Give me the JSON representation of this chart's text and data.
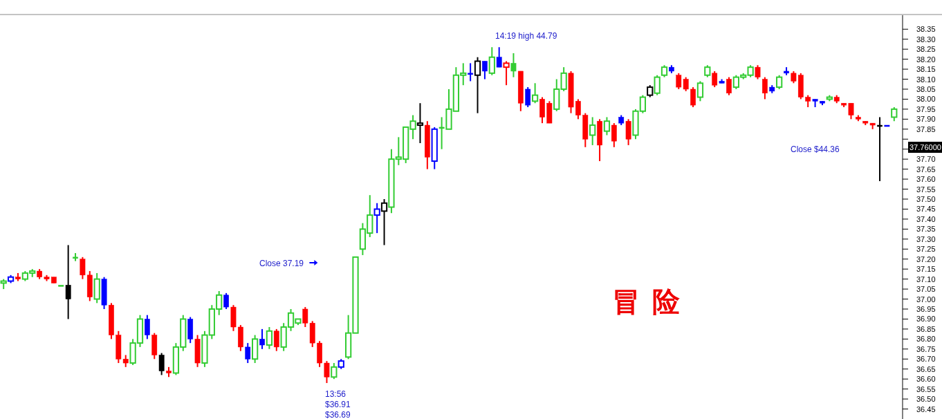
{
  "chart_data": {
    "type": "candlestick",
    "categories": [
      null,
      null,
      null,
      null,
      null,
      null,
      null,
      null,
      null,
      null,
      null,
      null,
      null,
      null,
      null,
      null,
      null,
      null,
      null,
      null,
      null,
      null,
      null,
      null,
      null,
      null,
      null,
      null,
      null,
      null,
      null,
      null,
      null,
      null,
      null,
      null,
      null,
      null,
      null,
      null,
      null,
      null,
      null,
      null,
      null,
      null,
      null,
      null,
      null,
      null,
      null,
      null,
      null,
      null,
      null,
      null,
      null,
      null,
      null,
      null,
      null,
      null,
      null,
      null,
      null,
      null,
      null,
      null,
      null,
      null,
      null,
      null,
      null,
      null,
      null,
      null,
      null,
      null,
      null,
      null,
      null,
      null,
      null,
      null,
      null,
      null,
      null,
      null,
      null,
      null,
      null,
      null,
      null,
      null,
      null,
      null,
      null,
      null,
      null,
      null,
      null,
      null,
      null,
      null,
      null,
      null,
      null,
      null,
      null,
      null,
      null,
      null,
      null,
      null,
      null,
      null,
      null,
      null,
      null,
      null,
      null,
      null,
      null,
      null,
      null
    ],
    "ohlc": [
      [
        37.08,
        37.1,
        37.05,
        37.09
      ],
      [
        37.09,
        37.12,
        37.08,
        37.11
      ],
      [
        37.11,
        37.13,
        37.09,
        37.1
      ],
      [
        37.1,
        37.14,
        37.09,
        37.13
      ],
      [
        37.13,
        37.15,
        37.11,
        37.14
      ],
      [
        37.14,
        37.15,
        37.1,
        37.11
      ],
      [
        37.11,
        37.12,
        37.09,
        37.1
      ],
      [
        37.11,
        37.11,
        37.08,
        37.08
      ],
      [
        37.07,
        37.07,
        37.07,
        37.07
      ],
      [
        37.07,
        37.27,
        36.9,
        37.0
      ],
      [
        37.21,
        37.23,
        37.19,
        37.21
      ],
      [
        37.2,
        37.21,
        37.1,
        37.12
      ],
      [
        37.12,
        37.14,
        36.99,
        37.01
      ],
      [
        37.0,
        37.13,
        36.98,
        37.1
      ],
      [
        37.1,
        37.11,
        36.95,
        36.97
      ],
      [
        36.97,
        36.98,
        36.8,
        36.82
      ],
      [
        36.82,
        36.84,
        36.68,
        36.7
      ],
      [
        36.7,
        36.72,
        36.66,
        36.68
      ],
      [
        36.68,
        36.8,
        36.67,
        36.78
      ],
      [
        36.78,
        36.92,
        36.76,
        36.9
      ],
      [
        36.9,
        36.92,
        36.8,
        36.82
      ],
      [
        36.82,
        36.83,
        36.7,
        36.72
      ],
      [
        36.72,
        36.73,
        36.62,
        36.64
      ],
      [
        36.64,
        36.66,
        36.61,
        36.63
      ],
      [
        36.63,
        36.78,
        36.62,
        36.76
      ],
      [
        36.76,
        36.92,
        36.74,
        36.9
      ],
      [
        36.9,
        36.91,
        36.78,
        36.8
      ],
      [
        36.8,
        36.82,
        36.66,
        36.68
      ],
      [
        36.68,
        36.84,
        36.66,
        36.82
      ],
      [
        36.82,
        36.97,
        36.8,
        36.95
      ],
      [
        36.95,
        37.04,
        36.92,
        37.02
      ],
      [
        37.02,
        37.03,
        36.95,
        36.96
      ],
      [
        36.96,
        36.97,
        36.84,
        36.86
      ],
      [
        36.86,
        36.87,
        36.74,
        36.76
      ],
      [
        36.76,
        36.78,
        36.68,
        36.7
      ],
      [
        36.7,
        36.82,
        36.68,
        36.8
      ],
      [
        36.8,
        36.85,
        36.75,
        36.77
      ],
      [
        36.77,
        36.86,
        36.75,
        36.84
      ],
      [
        36.84,
        36.85,
        36.74,
        36.76
      ],
      [
        36.76,
        36.88,
        36.74,
        36.86
      ],
      [
        36.86,
        36.95,
        36.84,
        36.93
      ],
      [
        36.88,
        36.9,
        36.87,
        36.9
      ],
      [
        36.95,
        36.96,
        36.86,
        36.88
      ],
      [
        36.88,
        36.89,
        36.76,
        36.78
      ],
      [
        36.78,
        36.79,
        36.66,
        36.68
      ],
      [
        36.68,
        36.69,
        36.58,
        36.61
      ],
      [
        36.61,
        36.68,
        36.6,
        36.66
      ],
      [
        36.66,
        36.7,
        36.65,
        36.69
      ],
      [
        36.71,
        36.92,
        36.7,
        36.83
      ],
      [
        36.83,
        37.21,
        36.83,
        37.21
      ],
      [
        37.25,
        37.38,
        37.22,
        37.35
      ],
      [
        37.33,
        37.52,
        37.31,
        37.42
      ],
      [
        37.42,
        37.48,
        37.33,
        37.45
      ],
      [
        37.44,
        37.5,
        37.27,
        37.48
      ],
      [
        37.46,
        37.75,
        37.43,
        37.7
      ],
      [
        37.7,
        37.81,
        37.67,
        37.71
      ],
      [
        37.7,
        37.86,
        37.68,
        37.86
      ],
      [
        37.85,
        37.92,
        37.8,
        37.89
      ],
      [
        37.87,
        37.98,
        37.78,
        37.88
      ],
      [
        37.87,
        37.89,
        37.65,
        37.71
      ],
      [
        37.69,
        37.86,
        37.65,
        37.85
      ],
      [
        37.86,
        37.91,
        37.75,
        37.86
      ],
      [
        37.85,
        38.05,
        37.85,
        37.95
      ],
      [
        37.94,
        38.16,
        37.94,
        38.12
      ],
      [
        38.12,
        38.18,
        38.07,
        38.13
      ],
      [
        38.13,
        38.18,
        38.09,
        38.13
      ],
      [
        38.12,
        38.21,
        37.93,
        38.19
      ],
      [
        38.19,
        38.19,
        38.1,
        38.14
      ],
      [
        38.13,
        38.26,
        38.12,
        38.21
      ],
      [
        38.21,
        38.26,
        38.16,
        38.16
      ],
      [
        38.16,
        38.19,
        38.07,
        38.18
      ],
      [
        38.18,
        38.23,
        38.11,
        38.14
      ],
      [
        38.14,
        38.14,
        37.94,
        37.98
      ],
      [
        38.05,
        38.06,
        37.96,
        37.97
      ],
      [
        37.99,
        38.08,
        37.98,
        38.02
      ],
      [
        38.0,
        38.01,
        37.88,
        37.91
      ],
      [
        37.98,
        37.99,
        37.88,
        37.88
      ],
      [
        37.95,
        38.1,
        37.94,
        38.05
      ],
      [
        38.05,
        38.16,
        38.04,
        38.13
      ],
      [
        38.13,
        38.14,
        37.93,
        37.96
      ],
      [
        37.99,
        38.0,
        37.9,
        37.92
      ],
      [
        37.92,
        37.93,
        37.76,
        37.8
      ],
      [
        37.82,
        37.91,
        37.77,
        37.87
      ],
      [
        37.89,
        37.9,
        37.69,
        37.77
      ],
      [
        37.84,
        37.91,
        37.82,
        37.89
      ],
      [
        37.87,
        37.88,
        37.76,
        37.79
      ],
      [
        37.91,
        37.92,
        37.87,
        37.88
      ],
      [
        37.89,
        37.9,
        37.77,
        37.8
      ],
      [
        37.82,
        37.95,
        37.8,
        37.94
      ],
      [
        37.94,
        38.02,
        37.93,
        38.01
      ],
      [
        38.02,
        38.07,
        38.01,
        38.06
      ],
      [
        38.03,
        38.12,
        38.02,
        38.11
      ],
      [
        38.12,
        38.17,
        38.11,
        38.16
      ],
      [
        38.16,
        38.17,
        38.13,
        38.14
      ],
      [
        38.12,
        38.13,
        38.05,
        38.06
      ],
      [
        38.1,
        38.11,
        38.04,
        38.05
      ],
      [
        38.05,
        38.06,
        37.96,
        37.97
      ],
      [
        38.01,
        38.09,
        37.99,
        38.08
      ],
      [
        38.12,
        38.17,
        38.11,
        38.16
      ],
      [
        38.13,
        38.14,
        38.06,
        38.07
      ],
      [
        38.09,
        38.1,
        38.08,
        38.08
      ],
      [
        38.1,
        38.11,
        38.02,
        38.03
      ],
      [
        38.06,
        38.12,
        38.05,
        38.11
      ],
      [
        38.11,
        38.13,
        38.1,
        38.12
      ],
      [
        38.12,
        38.17,
        38.11,
        38.16
      ],
      [
        38.16,
        38.17,
        38.1,
        38.11
      ],
      [
        38.1,
        38.11,
        38.0,
        38.03
      ],
      [
        38.06,
        38.07,
        38.03,
        38.04
      ],
      [
        38.06,
        38.12,
        38.05,
        38.11
      ],
      [
        38.14,
        38.16,
        38.12,
        38.13
      ],
      [
        38.13,
        38.14,
        38.08,
        38.09
      ],
      [
        38.12,
        38.13,
        38.0,
        38.01
      ],
      [
        38.01,
        38.02,
        37.96,
        37.99
      ],
      [
        38.0,
        38.0,
        37.96,
        37.99
      ],
      [
        37.99,
        37.99,
        37.97,
        37.98
      ],
      [
        38.0,
        38.02,
        37.99,
        38.01
      ],
      [
        38.01,
        38.02,
        37.98,
        37.99
      ],
      [
        37.98,
        37.98,
        37.96,
        37.97
      ],
      [
        37.98,
        37.98,
        37.9,
        37.92
      ],
      [
        37.91,
        37.92,
        37.89,
        37.9
      ],
      [
        37.89,
        37.89,
        37.87,
        37.88
      ],
      [
        37.88,
        37.88,
        37.85,
        37.87
      ],
      [
        37.87,
        37.91,
        37.59,
        37.87
      ],
      [
        37.87,
        37.87,
        37.87,
        37.87
      ],
      [
        37.91,
        37.96,
        37.89,
        37.95
      ]
    ],
    "colors": [
      "#33cc33",
      "#0000ff",
      "#ff0000",
      "#33cc33",
      "#33cc33",
      "#ff0000",
      "#ff0000",
      "#ff0000",
      "#33cc33",
      "#000000",
      "#33cc33",
      "#ff0000",
      "#ff0000",
      "#33cc33",
      "#0000ff",
      "#ff0000",
      "#ff0000",
      "#ff0000",
      "#33cc33",
      "#33cc33",
      "#0000ff",
      "#ff0000",
      "#000000",
      "#ff0000",
      "#33cc33",
      "#33cc33",
      "#0000ff",
      "#ff0000",
      "#33cc33",
      "#33cc33",
      "#33cc33",
      "#0000ff",
      "#ff0000",
      "#ff0000",
      "#0000ff",
      "#33cc33",
      "#0000ff",
      "#33cc33",
      "#ff0000",
      "#33cc33",
      "#33cc33",
      "#33cc33",
      "#ff0000",
      "#ff0000",
      "#ff0000",
      "#ff0000",
      "#33cc33",
      "#0000ff",
      "#33cc33",
      "#33cc33",
      "#33cc33",
      "#33cc33",
      "#0000ff",
      "#000000",
      "#33cc33",
      "#33cc33",
      "#33cc33",
      "#33cc33",
      "#000000",
      "#ff0000",
      "#0000ff",
      "#33cc33",
      "#33cc33",
      "#33cc33",
      "#33cc33",
      "#0000ff",
      "#000000",
      "#0000ff",
      "#33cc33",
      "#0000ff",
      "#ff0000",
      "#33cc33",
      "#ff0000",
      "#0000ff",
      "#33cc33",
      "#ff0000",
      "#ff0000",
      "#33cc33",
      "#33cc33",
      "#ff0000",
      "#ff0000",
      "#ff0000",
      "#33cc33",
      "#ff0000",
      "#33cc33",
      "#ff0000",
      "#0000ff",
      "#ff0000",
      "#33cc33",
      "#33cc33",
      "#000000",
      "#33cc33",
      "#33cc33",
      "#0000ff",
      "#ff0000",
      "#ff0000",
      "#ff0000",
      "#33cc33",
      "#33cc33",
      "#ff0000",
      "#0000ff",
      "#ff0000",
      "#33cc33",
      "#33cc33",
      "#33cc33",
      "#ff0000",
      "#ff0000",
      "#0000ff",
      "#33cc33",
      "#0000ff",
      "#ff0000",
      "#ff0000",
      "#ff0000",
      "#0000ff",
      "#0000ff",
      "#33cc33",
      "#ff0000",
      "#ff0000",
      "#ff0000",
      "#ff0000",
      "#ff0000",
      "#ff0000",
      "#000000",
      "#0000ff",
      "#33cc33"
    ],
    "ylim": [
      36.4,
      38.42
    ],
    "yticks": [
      {
        "value": 36.45,
        "label": "36.45"
      },
      {
        "value": 36.5,
        "label": "36.50"
      },
      {
        "value": 36.55,
        "label": "36.55"
      },
      {
        "value": 36.6,
        "label": "36.60"
      },
      {
        "value": 36.65,
        "label": "36.65"
      },
      {
        "value": 36.7,
        "label": "36.70"
      },
      {
        "value": 36.75,
        "label": "36.75"
      },
      {
        "value": 36.8,
        "label": "36.80"
      },
      {
        "value": 36.85,
        "label": "36.85"
      },
      {
        "value": 36.9,
        "label": "36.90"
      },
      {
        "value": 36.95,
        "label": "36.95"
      },
      {
        "value": 37.0,
        "label": "37.00"
      },
      {
        "value": 37.05,
        "label": "37.05"
      },
      {
        "value": 37.1,
        "label": "37.10"
      },
      {
        "value": 37.15,
        "label": "37.15"
      },
      {
        "value": 37.2,
        "label": "37.20"
      },
      {
        "value": 37.25,
        "label": "37.25"
      },
      {
        "value": 37.3,
        "label": "37.30"
      },
      {
        "value": 37.35,
        "label": "37.35"
      },
      {
        "value": 37.4,
        "label": "37.40"
      },
      {
        "value": 37.45,
        "label": "37.45"
      },
      {
        "value": 37.5,
        "label": "37.50"
      },
      {
        "value": 37.55,
        "label": "37.55"
      },
      {
        "value": 37.6,
        "label": "37.60"
      },
      {
        "value": 37.65,
        "label": "37.65"
      },
      {
        "value": 37.7,
        "label": "37.70"
      },
      {
        "value": 37.75,
        "label": null
      },
      {
        "value": 37.8,
        "label": null
      },
      {
        "value": 37.85,
        "label": "37.85"
      },
      {
        "value": 37.9,
        "label": "37.90"
      },
      {
        "value": 37.95,
        "label": "37.95"
      },
      {
        "value": 38.0,
        "label": "38.00"
      },
      {
        "value": 38.05,
        "label": "38.05"
      },
      {
        "value": 38.1,
        "label": "38.10"
      },
      {
        "value": 38.15,
        "label": "38.15"
      },
      {
        "value": 38.2,
        "label": "38.20"
      },
      {
        "value": 38.25,
        "label": "38.25"
      },
      {
        "value": 38.3,
        "label": "38.30"
      },
      {
        "value": 38.35,
        "label": "38.35"
      }
    ],
    "tick_labels": "y",
    "annotations": [
      "14:19 high 44.79",
      "Close 37.19",
      "13:56",
      "$36.91",
      "$36.69",
      "Close $44.36",
      "冒险",
      "37.76000"
    ]
  }
}
